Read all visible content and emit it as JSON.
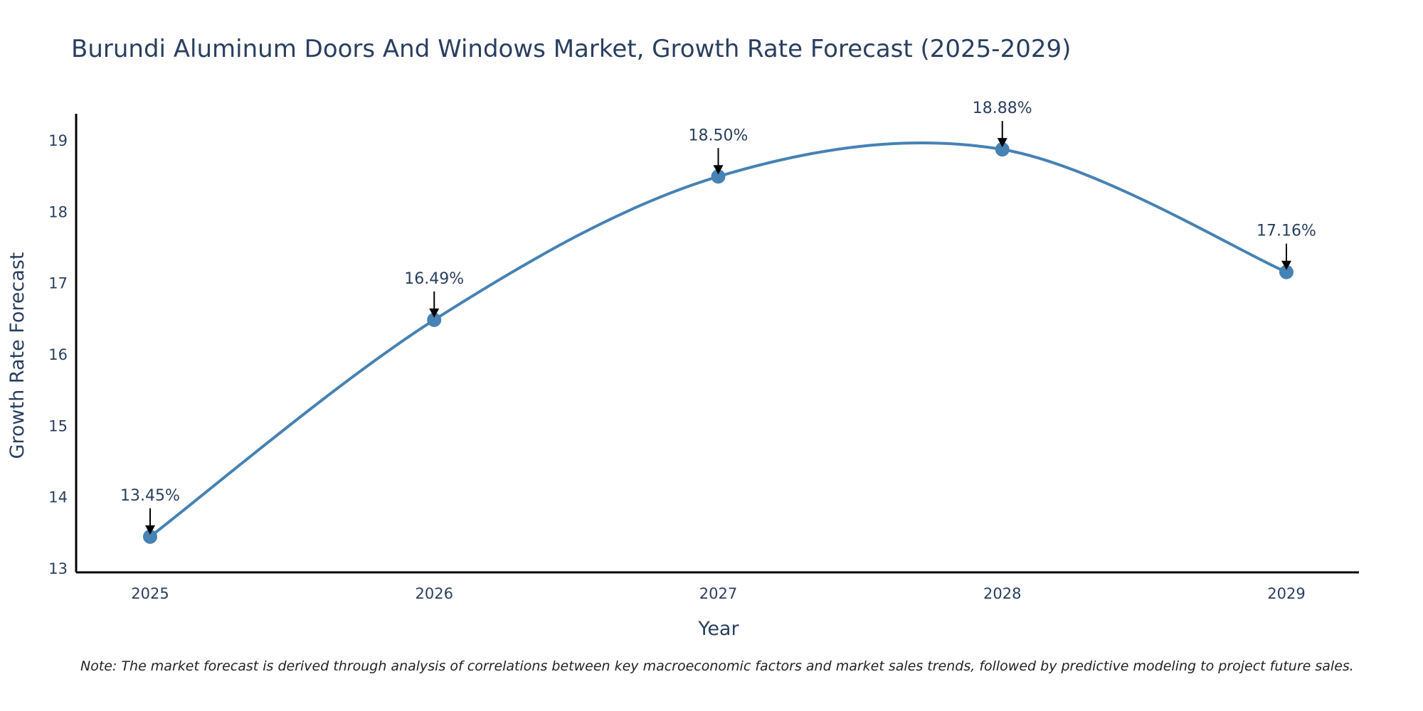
{
  "chart_data": {
    "type": "line",
    "title": "Burundi Aluminum Doors And Windows Market, Growth Rate Forecast (2025-2029)",
    "xlabel": "Year",
    "ylabel": "Growth Rate Forecast",
    "categories": [
      "2025",
      "2026",
      "2027",
      "2028",
      "2029"
    ],
    "series": [
      {
        "name": "Growth Rate Forecast",
        "values": [
          13.45,
          16.49,
          18.5,
          18.88,
          17.16
        ],
        "labels": [
          "13.45%",
          "16.49%",
          "18.50%",
          "18.88%",
          "17.16%"
        ],
        "color": "#4682b4"
      }
    ],
    "ylim": [
      12.95,
      19.38
    ],
    "yticks": [
      13,
      14,
      15,
      16,
      17,
      18,
      19
    ],
    "grid": false,
    "legend": "none",
    "line_shape": "spline",
    "note": "Note: The market forecast is derived through analysis of correlations between key macroeconomic factors and market sales trends, followed by predictive modeling to project future sales."
  },
  "colors": {
    "line": "#4682b4",
    "text": "#2a3f5f",
    "axis": "#000000",
    "arrow": "#000000"
  }
}
